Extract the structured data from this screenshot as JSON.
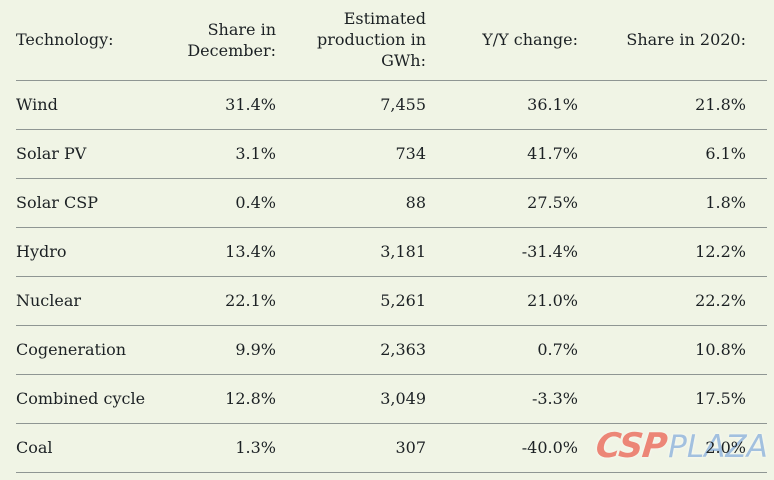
{
  "page": {
    "background_color": "#f0f4e5",
    "text_color": "#1c2124",
    "line_color": "#8f9693"
  },
  "table": {
    "headers": [
      {
        "label": "Technology:"
      },
      {
        "label": "Share in\nDecember:"
      },
      {
        "label": "Estimated\nproduction in\nGWh:"
      },
      {
        "label": "Y/Y change:"
      },
      {
        "label": "Share in 2020:"
      }
    ],
    "rows": [
      {
        "cells": [
          "Wind",
          "31.4%",
          "7,455",
          "36.1%",
          "21.8%"
        ]
      },
      {
        "cells": [
          "Solar PV",
          "3.1%",
          "734",
          "41.7%",
          "6.1%"
        ]
      },
      {
        "cells": [
          "Solar CSP",
          "0.4%",
          "88",
          "27.5%",
          "1.8%"
        ]
      },
      {
        "cells": [
          "Hydro",
          "13.4%",
          "3,181",
          "-31.4%",
          "12.2%"
        ]
      },
      {
        "cells": [
          "Nuclear",
          "22.1%",
          "5,261",
          "21.0%",
          "22.2%"
        ]
      },
      {
        "cells": [
          "Cogeneration",
          "9.9%",
          "2,363",
          "0.7%",
          "10.8%"
        ]
      },
      {
        "cells": [
          "Combined cycle",
          "12.8%",
          "3,049",
          "-3.3%",
          "17.5%"
        ]
      },
      {
        "cells": [
          "Coal",
          "1.3%",
          "307",
          "-40.0%",
          "2.0%"
        ]
      }
    ]
  },
  "watermark": {
    "csp": "CSP",
    "plaza": "PLAZA",
    "csp_color": "#ec7e6f",
    "plaza_color": "#9dbddf"
  },
  "chart_data": {
    "type": "table",
    "title": "",
    "columns": [
      "Technology:",
      "Share in December:",
      "Estimated production in GWh:",
      "Y/Y change:",
      "Share in 2020:"
    ],
    "rows": [
      [
        "Wind",
        "31.4%",
        "7,455",
        "36.1%",
        "21.8%"
      ],
      [
        "Solar PV",
        "3.1%",
        "734",
        "41.7%",
        "6.1%"
      ],
      [
        "Solar CSP",
        "0.4%",
        "88",
        "27.5%",
        "1.8%"
      ],
      [
        "Hydro",
        "13.4%",
        "3,181",
        "-31.4%",
        "12.2%"
      ],
      [
        "Nuclear",
        "22.1%",
        "5,261",
        "21.0%",
        "22.2%"
      ],
      [
        "Cogeneration",
        "9.9%",
        "2,363",
        "0.7%",
        "10.8%"
      ],
      [
        "Combined cycle",
        "12.8%",
        "3,049",
        "-3.3%",
        "17.5%"
      ],
      [
        "Coal",
        "1.3%",
        "307",
        "-40.0%",
        "2.0%"
      ]
    ],
    "numeric": {
      "technologies": [
        "Wind",
        "Solar PV",
        "Solar CSP",
        "Hydro",
        "Nuclear",
        "Cogeneration",
        "Combined cycle",
        "Coal"
      ],
      "share_in_december_pct": [
        31.4,
        3.1,
        0.4,
        13.4,
        22.1,
        9.9,
        12.8,
        1.3
      ],
      "estimated_production_gwh": [
        7455,
        734,
        88,
        3181,
        5261,
        2363,
        3049,
        307
      ],
      "yy_change_pct": [
        36.1,
        41.7,
        27.5,
        -31.4,
        21.0,
        0.7,
        -3.3,
        -40.0
      ],
      "share_in_2020_pct": [
        21.8,
        6.1,
        1.8,
        12.2,
        22.2,
        10.8,
        17.5,
        2.0
      ]
    }
  }
}
